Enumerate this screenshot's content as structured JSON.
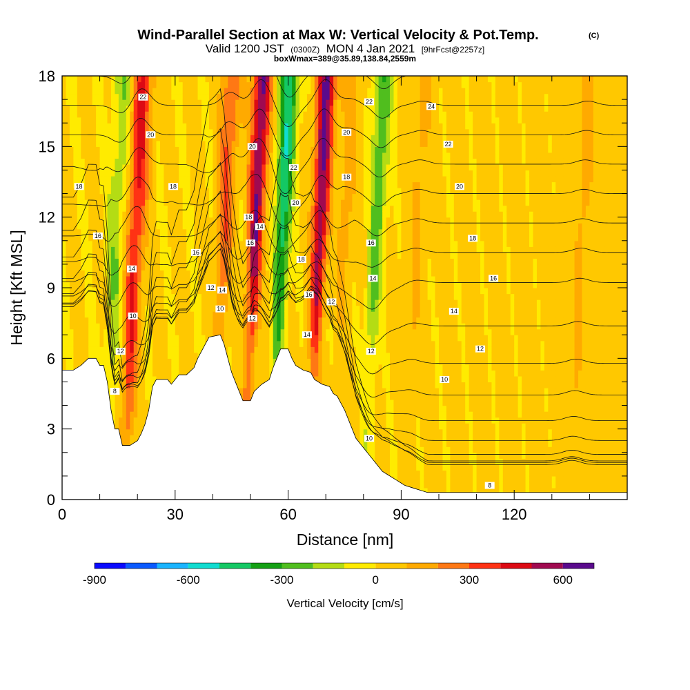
{
  "chart_data": {
    "type": "heatmap",
    "title": "Wind-Parallel Section at Max W: Vertical Velocity & Pot.Temp.",
    "title_mark": "(C)",
    "subtitle": {
      "valid_prefix": "Valid 1200 JST",
      "utc": "(0300Z)",
      "date": "MON 4 Jan 2021",
      "forecast": "[9hrFcst@2257z]"
    },
    "box_info": "boxWmax=389@35.89,138.84,2559m",
    "xlabel": "Distance [nm]",
    "ylabel": "Height [Kft MSL]",
    "xlim": [
      0,
      150
    ],
    "ylim": [
      0,
      18
    ],
    "x_ticks": [
      0,
      30,
      60,
      90,
      120
    ],
    "y_ticks": [
      0,
      3,
      6,
      9,
      12,
      15,
      18
    ],
    "colorbar": {
      "title": "Vertical Velocity [cm/s]",
      "bounds": [
        -900,
        -800,
        -700,
        -600,
        -500,
        -400,
        -300,
        -200,
        -100,
        0,
        100,
        200,
        300,
        400,
        500,
        600,
        700
      ],
      "colors": [
        "#0a0aff",
        "#0a5aff",
        "#1ab4ff",
        "#10dcd0",
        "#14c864",
        "#14a014",
        "#50be1e",
        "#b4dc14",
        "#ffeb00",
        "#ffc800",
        "#ffaa00",
        "#ff7814",
        "#ff3214",
        "#dc0a14",
        "#a00a50",
        "#5a0a8c"
      ],
      "tick_values": [
        -900,
        -600,
        -300,
        0,
        300,
        600
      ]
    },
    "velocity_features": [
      {
        "x": 17,
        "base": 2.3,
        "amp": 400
      },
      {
        "x": 12,
        "base": 2.3,
        "amp": -200
      },
      {
        "x": 42,
        "base": 7.0,
        "amp": 300
      },
      {
        "x": 50,
        "base": 6.5,
        "amp": 600
      },
      {
        "x": 57,
        "base": 6.0,
        "amp": -500
      },
      {
        "x": 67,
        "base": 6.3,
        "amp": 600
      },
      {
        "x": 74,
        "base": 7.5,
        "amp": 150
      },
      {
        "x": 82,
        "base": 6.0,
        "amp": -300
      },
      {
        "x": 92,
        "base": 3.5,
        "amp": 100
      },
      {
        "x": 135,
        "base": 0.5,
        "amp": 100
      }
    ],
    "theta_isentropes": [
      6,
      7,
      8,
      9,
      10,
      11,
      12,
      13,
      14,
      15,
      16,
      17,
      18,
      19,
      20,
      21,
      22,
      23,
      24,
      25
    ],
    "contour_labels": [
      {
        "text": "22",
        "x": 21.5,
        "y": 17.1
      },
      {
        "text": "20",
        "x": 23.5,
        "y": 15.5
      },
      {
        "text": "18",
        "x": 4.5,
        "y": 13.3
      },
      {
        "text": "16",
        "x": 9.5,
        "y": 11.2
      },
      {
        "text": "18",
        "x": 29.5,
        "y": 13.3
      },
      {
        "text": "16",
        "x": 35.5,
        "y": 10.5
      },
      {
        "text": "14",
        "x": 18.5,
        "y": 9.8
      },
      {
        "text": "10",
        "x": 18.8,
        "y": 7.8
      },
      {
        "text": "12",
        "x": 15.5,
        "y": 6.3
      },
      {
        "text": "8",
        "x": 14.0,
        "y": 4.6
      },
      {
        "text": "12",
        "x": 39.5,
        "y": 9.0
      },
      {
        "text": "14",
        "x": 42.5,
        "y": 8.9
      },
      {
        "text": "10",
        "x": 42.0,
        "y": 8.1
      },
      {
        "text": "20",
        "x": 50.5,
        "y": 15.0
      },
      {
        "text": "18",
        "x": 49.5,
        "y": 12.0
      },
      {
        "text": "14",
        "x": 52.5,
        "y": 11.6
      },
      {
        "text": "16",
        "x": 50.0,
        "y": 10.9
      },
      {
        "text": "12",
        "x": 50.5,
        "y": 7.7
      },
      {
        "text": "22",
        "x": 61.5,
        "y": 14.1
      },
      {
        "text": "20",
        "x": 62.0,
        "y": 12.6
      },
      {
        "text": "18",
        "x": 63.5,
        "y": 10.2
      },
      {
        "text": "16",
        "x": 65.5,
        "y": 8.7
      },
      {
        "text": "14",
        "x": 65.0,
        "y": 7.0
      },
      {
        "text": "12",
        "x": 71.5,
        "y": 8.4
      },
      {
        "text": "20",
        "x": 75.5,
        "y": 15.6
      },
      {
        "text": "18",
        "x": 75.5,
        "y": 13.7
      },
      {
        "text": "22",
        "x": 81.5,
        "y": 16.9
      },
      {
        "text": "16",
        "x": 82.0,
        "y": 10.9
      },
      {
        "text": "14",
        "x": 82.5,
        "y": 9.4
      },
      {
        "text": "12",
        "x": 82.0,
        "y": 6.3
      },
      {
        "text": "24",
        "x": 98.0,
        "y": 16.7
      },
      {
        "text": "22",
        "x": 102.5,
        "y": 15.1
      },
      {
        "text": "20",
        "x": 105.5,
        "y": 13.3
      },
      {
        "text": "18",
        "x": 109.0,
        "y": 11.1
      },
      {
        "text": "16",
        "x": 114.5,
        "y": 9.4
      },
      {
        "text": "14",
        "x": 104.0,
        "y": 8.0
      },
      {
        "text": "12",
        "x": 111.0,
        "y": 6.4
      },
      {
        "text": "10",
        "x": 101.5,
        "y": 5.1
      },
      {
        "text": "10",
        "x": 81.5,
        "y": 2.6
      },
      {
        "text": "8",
        "x": 113.5,
        "y": 0.6
      }
    ],
    "terrain_kft": [
      [
        0,
        5.5
      ],
      [
        3,
        5.5
      ],
      [
        5,
        5.7
      ],
      [
        7,
        6.0
      ],
      [
        9,
        6.0
      ],
      [
        10,
        5.7
      ],
      [
        11,
        5.7
      ],
      [
        12,
        5.0
      ],
      [
        13,
        3.8
      ],
      [
        14,
        3.0
      ],
      [
        15,
        3.0
      ],
      [
        16,
        2.3
      ],
      [
        18,
        2.3
      ],
      [
        20,
        2.5
      ],
      [
        21,
        2.8
      ],
      [
        22,
        3.2
      ],
      [
        23,
        3.8
      ],
      [
        24,
        4.8
      ],
      [
        25,
        5.1
      ],
      [
        28,
        5.1
      ],
      [
        29,
        4.9
      ],
      [
        30,
        5.1
      ],
      [
        31,
        5.3
      ],
      [
        33,
        5.3
      ],
      [
        35,
        5.6
      ],
      [
        36,
        6.0
      ],
      [
        37,
        6.3
      ],
      [
        38,
        6.6
      ],
      [
        39,
        6.9
      ],
      [
        42,
        7.0
      ],
      [
        43,
        6.6
      ],
      [
        44,
        6.0
      ],
      [
        45,
        5.4
      ],
      [
        46,
        5.0
      ],
      [
        47,
        4.6
      ],
      [
        48,
        4.2
      ],
      [
        50,
        4.2
      ],
      [
        51,
        4.6
      ],
      [
        53,
        4.9
      ],
      [
        55,
        5.1
      ],
      [
        56,
        5.6
      ],
      [
        57,
        6.0
      ],
      [
        58,
        6.4
      ],
      [
        60,
        6.4
      ],
      [
        61,
        6.0
      ],
      [
        62,
        5.7
      ],
      [
        64,
        5.5
      ],
      [
        66,
        5.4
      ],
      [
        67,
        5.1
      ],
      [
        69,
        4.9
      ],
      [
        71,
        4.8
      ],
      [
        72,
        4.5
      ],
      [
        73,
        4.4
      ],
      [
        74,
        4.1
      ],
      [
        75,
        3.8
      ],
      [
        76,
        3.4
      ],
      [
        77,
        3.0
      ],
      [
        78,
        2.6
      ],
      [
        79,
        2.4
      ],
      [
        80,
        2.2
      ],
      [
        81,
        2.0
      ],
      [
        82,
        1.8
      ],
      [
        83,
        1.6
      ],
      [
        84,
        1.4
      ],
      [
        85,
        1.2
      ],
      [
        86,
        1.1
      ],
      [
        87,
        1.0
      ],
      [
        88,
        0.9
      ],
      [
        89,
        0.8
      ],
      [
        90,
        0.7
      ],
      [
        91,
        0.6
      ],
      [
        93,
        0.5
      ],
      [
        95,
        0.4
      ],
      [
        97,
        0.3
      ],
      [
        100,
        0.3
      ],
      [
        150,
        0.3
      ]
    ]
  }
}
